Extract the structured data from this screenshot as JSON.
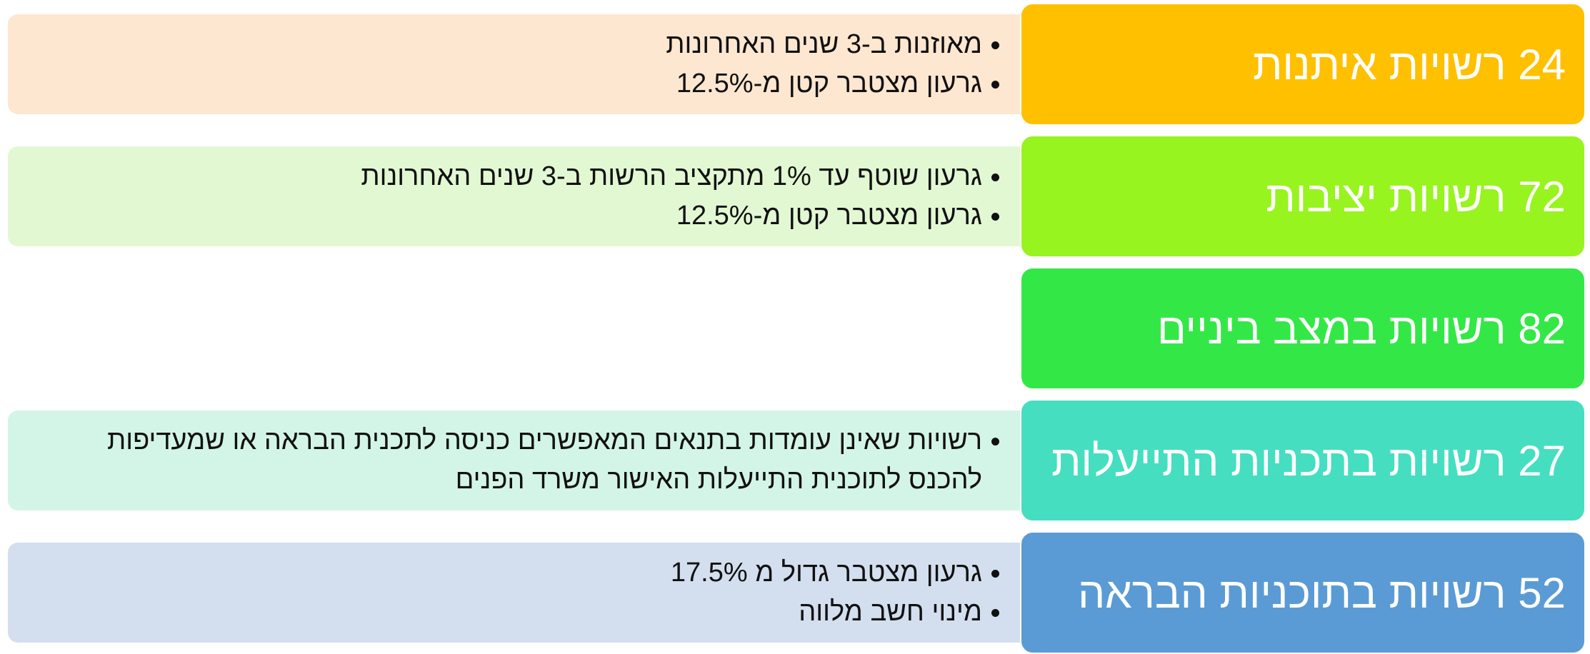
{
  "rows": [
    {
      "title": "24 רשויות איתנות",
      "color": "#FFC000",
      "detail_color": "#FEE7D0",
      "bullets": [
        "מאוזנות ב-3 שנים האחרונות",
        "גרעון מצטבר קטן מ-12.5%"
      ]
    },
    {
      "title": "72 רשויות יציבות",
      "color": "#97F41E",
      "detail_color": "#E2F8D3",
      "bullets": [
        "גרעון שוטף עד 1% מתקציב הרשות ב-3 שנים האחרונות",
        "גרעון מצטבר קטן מ-12.5%"
      ]
    },
    {
      "title": "82 רשויות במצב ביניים",
      "color": "#33E846",
      "detail_color": "#ffffff",
      "bullets": []
    },
    {
      "title": "27 רשויות בתכניות התייעלות",
      "color": "#45DEC0",
      "detail_color": "#D3F5E7",
      "bullets": [
        "רשויות שאינן עומדות בתנאים המאפשרים כניסה לתכנית הבראה או שמעדיפות להכנס לתוכנית התייעלות האישור משרד הפנים"
      ]
    },
    {
      "title": "52 רשויות בתוכניות הבראה",
      "color": "#5B9BD5",
      "detail_color": "#D3DFEE",
      "bullets": [
        "גרעון מצטבר גדול מ 17.5%",
        "מינוי חשב מלווה"
      ]
    }
  ]
}
